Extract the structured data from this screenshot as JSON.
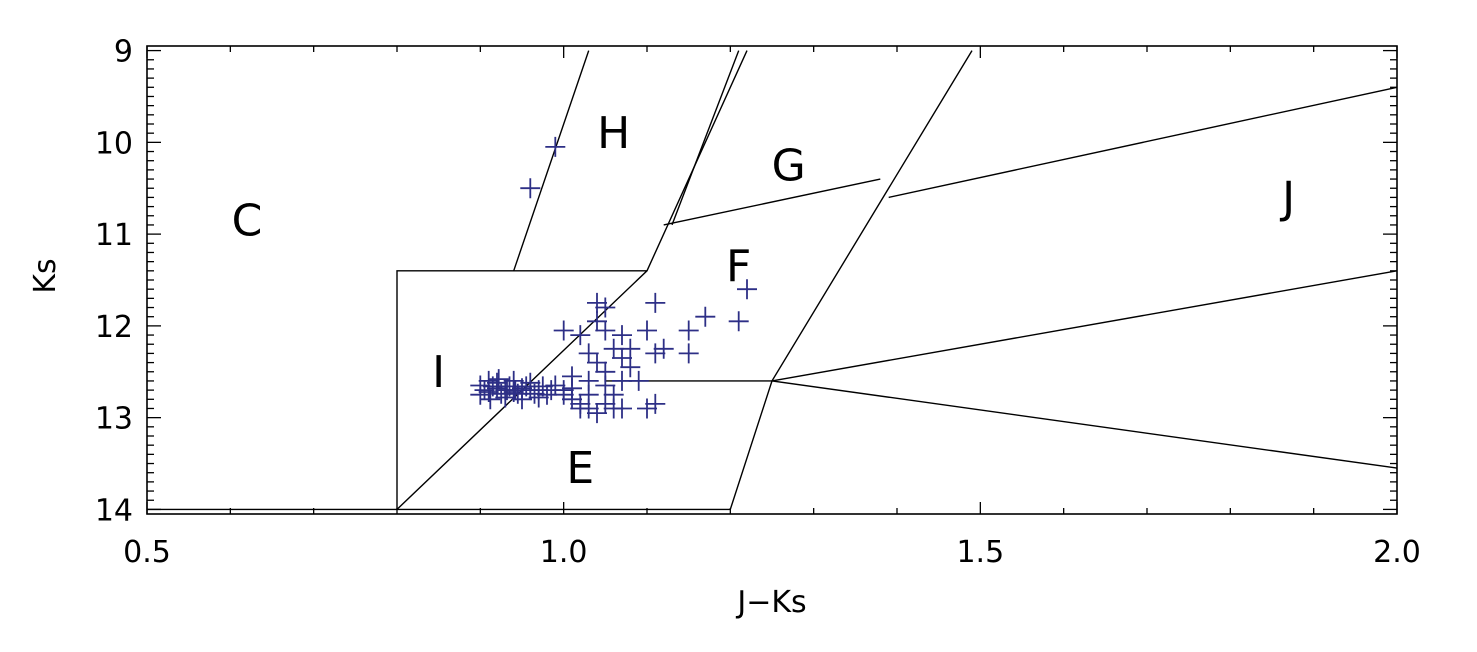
{
  "chart_data": {
    "type": "scatter",
    "title": "",
    "xlabel": "J−Ks",
    "ylabel": "Ks",
    "xlim": [
      0.5,
      2.0
    ],
    "ylim": [
      14.05,
      8.95
    ],
    "y_inverted": true,
    "x_ticks": [
      {
        "value": 0.5,
        "label": "0.5"
      },
      {
        "value": 1.0,
        "label": "1.0"
      },
      {
        "value": 1.5,
        "label": "1.5"
      },
      {
        "value": 2.0,
        "label": "2.0"
      }
    ],
    "y_ticks": [
      {
        "value": 9,
        "label": "9"
      },
      {
        "value": 10,
        "label": "10"
      },
      {
        "value": 11,
        "label": "11"
      },
      {
        "value": 12,
        "label": "12"
      },
      {
        "value": 13,
        "label": "13"
      },
      {
        "value": 14,
        "label": "14"
      }
    ],
    "grid": false,
    "marker": "plus",
    "marker_color": "#2d2f86",
    "line_color": "#000000",
    "regions": [
      {
        "label": "C",
        "x": 0.62,
        "y": 10.85
      },
      {
        "label": "H",
        "x": 1.06,
        "y": 9.9
      },
      {
        "label": "G",
        "x": 1.27,
        "y": 10.25
      },
      {
        "label": "J",
        "x": 1.87,
        "y": 10.6
      },
      {
        "label": "F",
        "x": 1.21,
        "y": 11.35
      },
      {
        "label": "I",
        "x": 0.85,
        "y": 12.5
      },
      {
        "label": "E",
        "x": 1.02,
        "y": 13.55
      }
    ],
    "boundaries": [
      {
        "points": [
          [
            0.5,
            14.0
          ],
          [
            1.2,
            14.0
          ]
        ]
      },
      {
        "points": [
          [
            0.8,
            14.0
          ],
          [
            0.8,
            11.4
          ],
          [
            1.1,
            11.4
          ]
        ]
      },
      {
        "points": [
          [
            0.8,
            14.0
          ],
          [
            1.1,
            11.4
          ],
          [
            1.22,
            9.0
          ]
        ]
      },
      {
        "points": [
          [
            0.94,
            11.4
          ],
          [
            1.03,
            9.0
          ]
        ]
      },
      {
        "points": [
          [
            1.12,
            10.9
          ],
          [
            1.38,
            10.4
          ]
        ]
      },
      {
        "points": [
          [
            1.13,
            10.9
          ],
          [
            1.21,
            9.0
          ]
        ]
      },
      {
        "points": [
          [
            1.2,
            14.0
          ],
          [
            1.25,
            12.6
          ],
          [
            1.49,
            9.0
          ]
        ]
      },
      {
        "points": [
          [
            1.05,
            12.6
          ],
          [
            1.25,
            12.6
          ]
        ]
      },
      {
        "points": [
          [
            1.39,
            10.6
          ],
          [
            2.0,
            9.4
          ]
        ]
      },
      {
        "points": [
          [
            1.25,
            12.6
          ],
          [
            2.0,
            11.4
          ]
        ]
      },
      {
        "points": [
          [
            1.25,
            12.6
          ],
          [
            2.0,
            13.55
          ]
        ]
      }
    ],
    "points": [
      [
        0.99,
        10.05
      ],
      [
        0.96,
        10.5
      ],
      [
        1.22,
        11.6
      ],
      [
        1.21,
        11.95
      ],
      [
        1.17,
        11.9
      ],
      [
        1.15,
        12.05
      ],
      [
        1.15,
        12.3
      ],
      [
        1.11,
        11.75
      ],
      [
        1.1,
        12.05
      ],
      [
        1.11,
        12.3
      ],
      [
        1.12,
        12.25
      ],
      [
        1.09,
        12.6
      ],
      [
        1.11,
        12.85
      ],
      [
        1.1,
        12.9
      ],
      [
        1.08,
        12.45
      ],
      [
        1.07,
        12.35
      ],
      [
        1.07,
        12.6
      ],
      [
        1.06,
        12.75
      ],
      [
        1.07,
        12.9
      ],
      [
        1.05,
        12.05
      ],
      [
        1.05,
        11.8
      ],
      [
        1.04,
        11.75
      ],
      [
        1.04,
        11.95
      ],
      [
        1.04,
        12.4
      ],
      [
        1.05,
        12.5
      ],
      [
        1.05,
        12.65
      ],
      [
        1.05,
        12.85
      ],
      [
        1.04,
        12.95
      ],
      [
        1.03,
        12.9
      ],
      [
        1.02,
        12.85
      ],
      [
        1.03,
        12.75
      ],
      [
        1.01,
        12.55
      ],
      [
        1.0,
        12.75
      ],
      [
        0.99,
        12.65
      ],
      [
        1.02,
        12.1
      ],
      [
        1.0,
        12.05
      ],
      [
        1.06,
        12.25
      ],
      [
        1.03,
        12.6
      ],
      [
        1.02,
        12.9
      ],
      [
        1.06,
        12.9
      ],
      [
        1.08,
        12.25
      ],
      [
        1.07,
        12.1
      ],
      [
        1.03,
        12.3
      ],
      [
        1.01,
        12.8
      ],
      [
        0.98,
        12.75
      ],
      [
        0.97,
        12.7
      ],
      [
        0.96,
        12.7
      ],
      [
        0.95,
        12.68
      ],
      [
        0.94,
        12.72
      ],
      [
        0.93,
        12.7
      ],
      [
        0.92,
        12.68
      ],
      [
        0.91,
        12.72
      ],
      [
        0.905,
        12.7
      ],
      [
        0.915,
        12.66
      ],
      [
        0.925,
        12.74
      ],
      [
        0.935,
        12.66
      ],
      [
        0.945,
        12.74
      ],
      [
        0.955,
        12.66
      ],
      [
        0.965,
        12.74
      ],
      [
        0.975,
        12.66
      ],
      [
        0.985,
        12.7
      ],
      [
        0.91,
        12.6
      ],
      [
        0.92,
        12.62
      ],
      [
        0.93,
        12.78
      ],
      [
        0.94,
        12.6
      ],
      [
        0.95,
        12.8
      ],
      [
        0.96,
        12.62
      ],
      [
        0.97,
        12.78
      ],
      [
        0.9,
        12.75
      ],
      [
        0.9,
        12.65
      ],
      [
        0.912,
        12.8
      ],
      [
        0.922,
        12.58
      ],
      [
        0.932,
        12.7
      ],
      [
        0.942,
        12.7
      ],
      [
        1.0,
        12.7
      ],
      [
        1.01,
        12.68
      ]
    ]
  }
}
